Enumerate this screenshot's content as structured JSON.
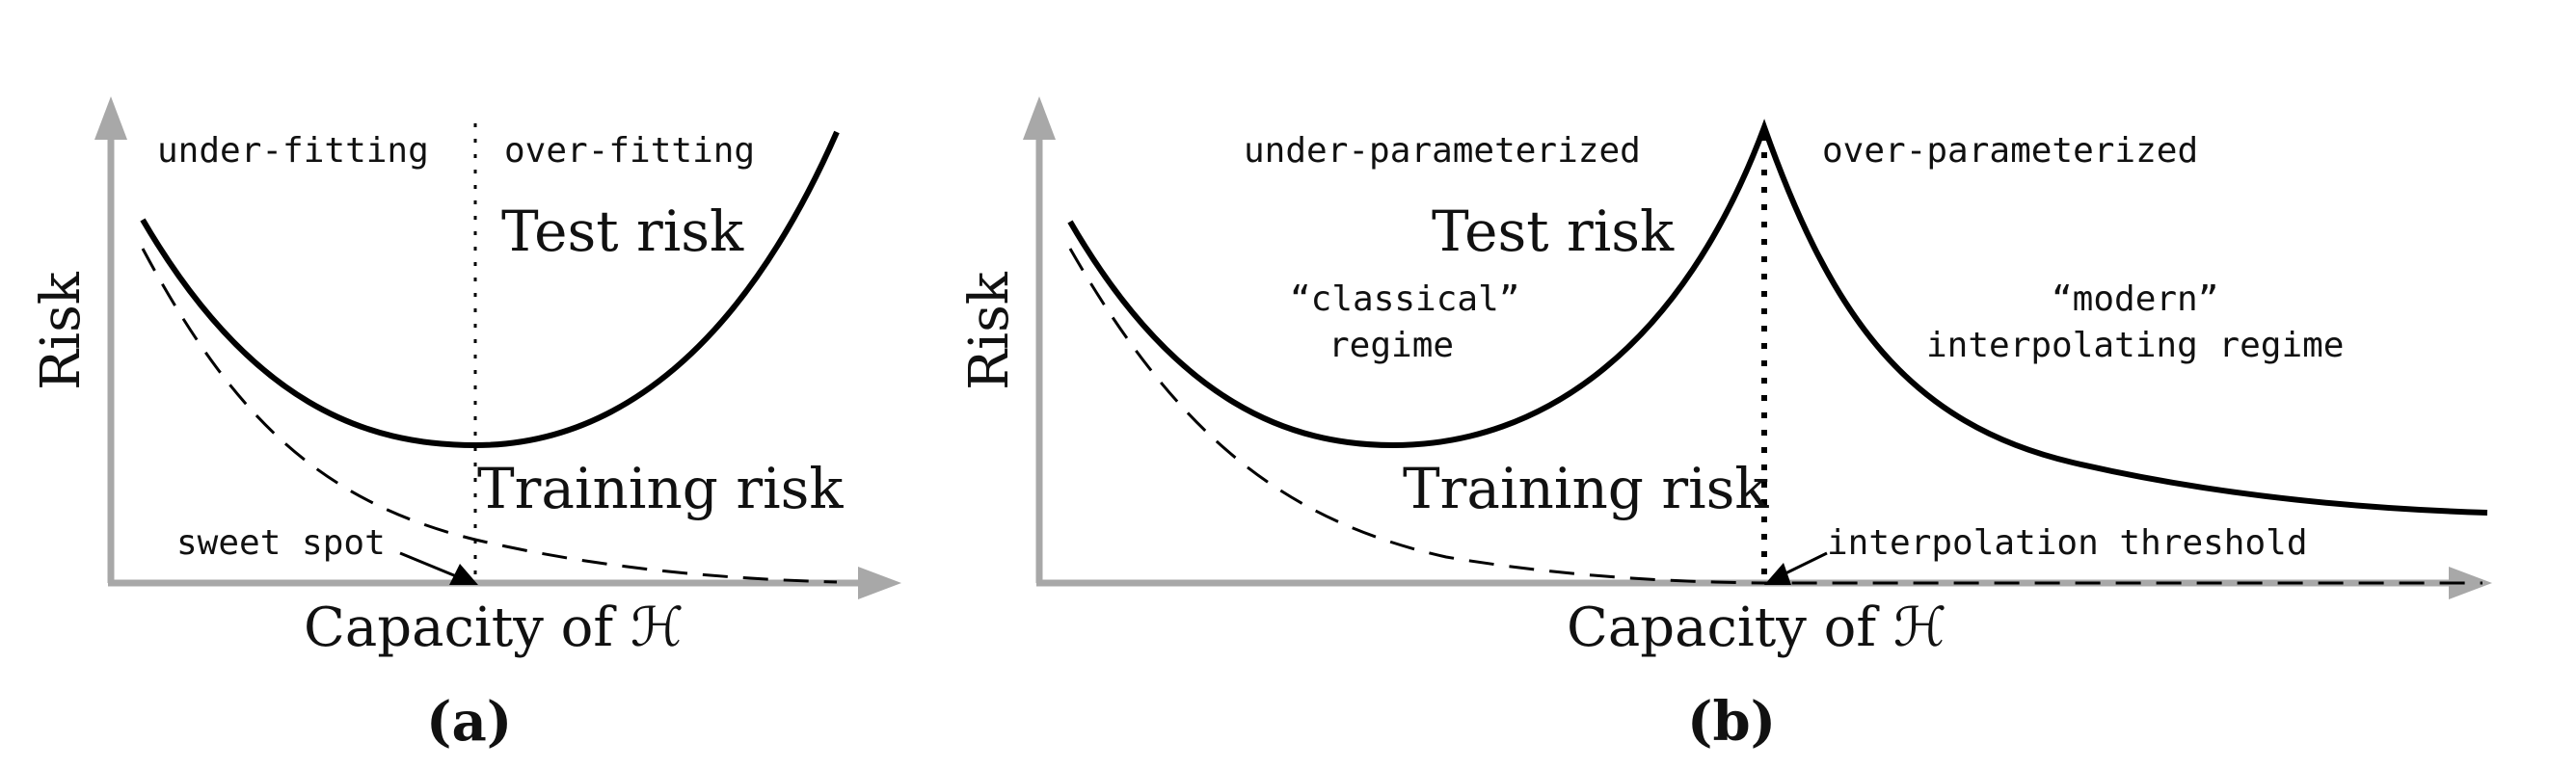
{
  "panel_a": {
    "label": "(a)",
    "y_axis_label": "Risk",
    "x_axis_label": "Capacity of ℋ",
    "region_left": "under-fitting",
    "region_right": "over-fitting",
    "test_curve_label": "Test risk",
    "train_curve_label": "Training risk",
    "annotation": "sweet spot"
  },
  "panel_b": {
    "label": "(b)",
    "y_axis_label": "Risk",
    "x_axis_label": "Capacity of ℋ",
    "region_left": "under-parameterized",
    "region_right": "over-parameterized",
    "test_curve_label": "Test risk",
    "train_curve_label": "Training risk",
    "classical_line1": "“classical”",
    "classical_line2": "regime",
    "modern_line1": "“modern”",
    "modern_line2": "interpolating regime",
    "annotation": "interpolation threshold"
  }
}
